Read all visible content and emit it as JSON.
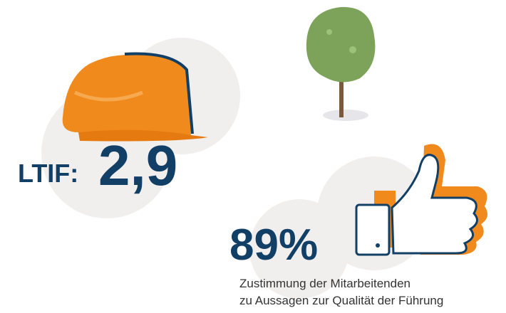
{
  "ltif": {
    "label": "LTIF:",
    "value": "2,9"
  },
  "approval": {
    "value": "89%",
    "caption": [
      "Zustimmung der Mitarbeitenden",
      "zu Aussagen zur Qualität der Führung"
    ]
  }
}
